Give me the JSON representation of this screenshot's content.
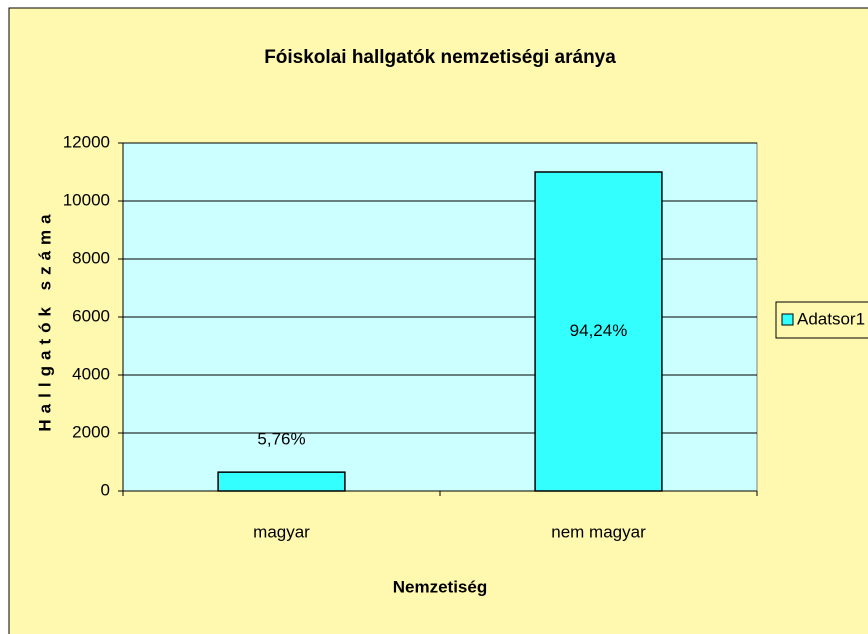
{
  "chart_data": {
    "type": "bar",
    "title": "Fóiskolai hallgatók nemzetiségi aránya",
    "x_label": "Nemzetiség",
    "y_label": "Hallgatók száma",
    "categories": [
      "magyar",
      "nem magyar"
    ],
    "series": [
      {
        "name": "Adatsor1",
        "color": "#33ffff",
        "values": [
          650,
          11000
        ]
      }
    ],
    "annotations": [
      "5,76%",
      "94,24%"
    ],
    "ylim": [
      0,
      12000
    ],
    "yticks": [
      0,
      2000,
      4000,
      6000,
      8000,
      10000,
      12000
    ],
    "grid": true,
    "legend": "right"
  }
}
